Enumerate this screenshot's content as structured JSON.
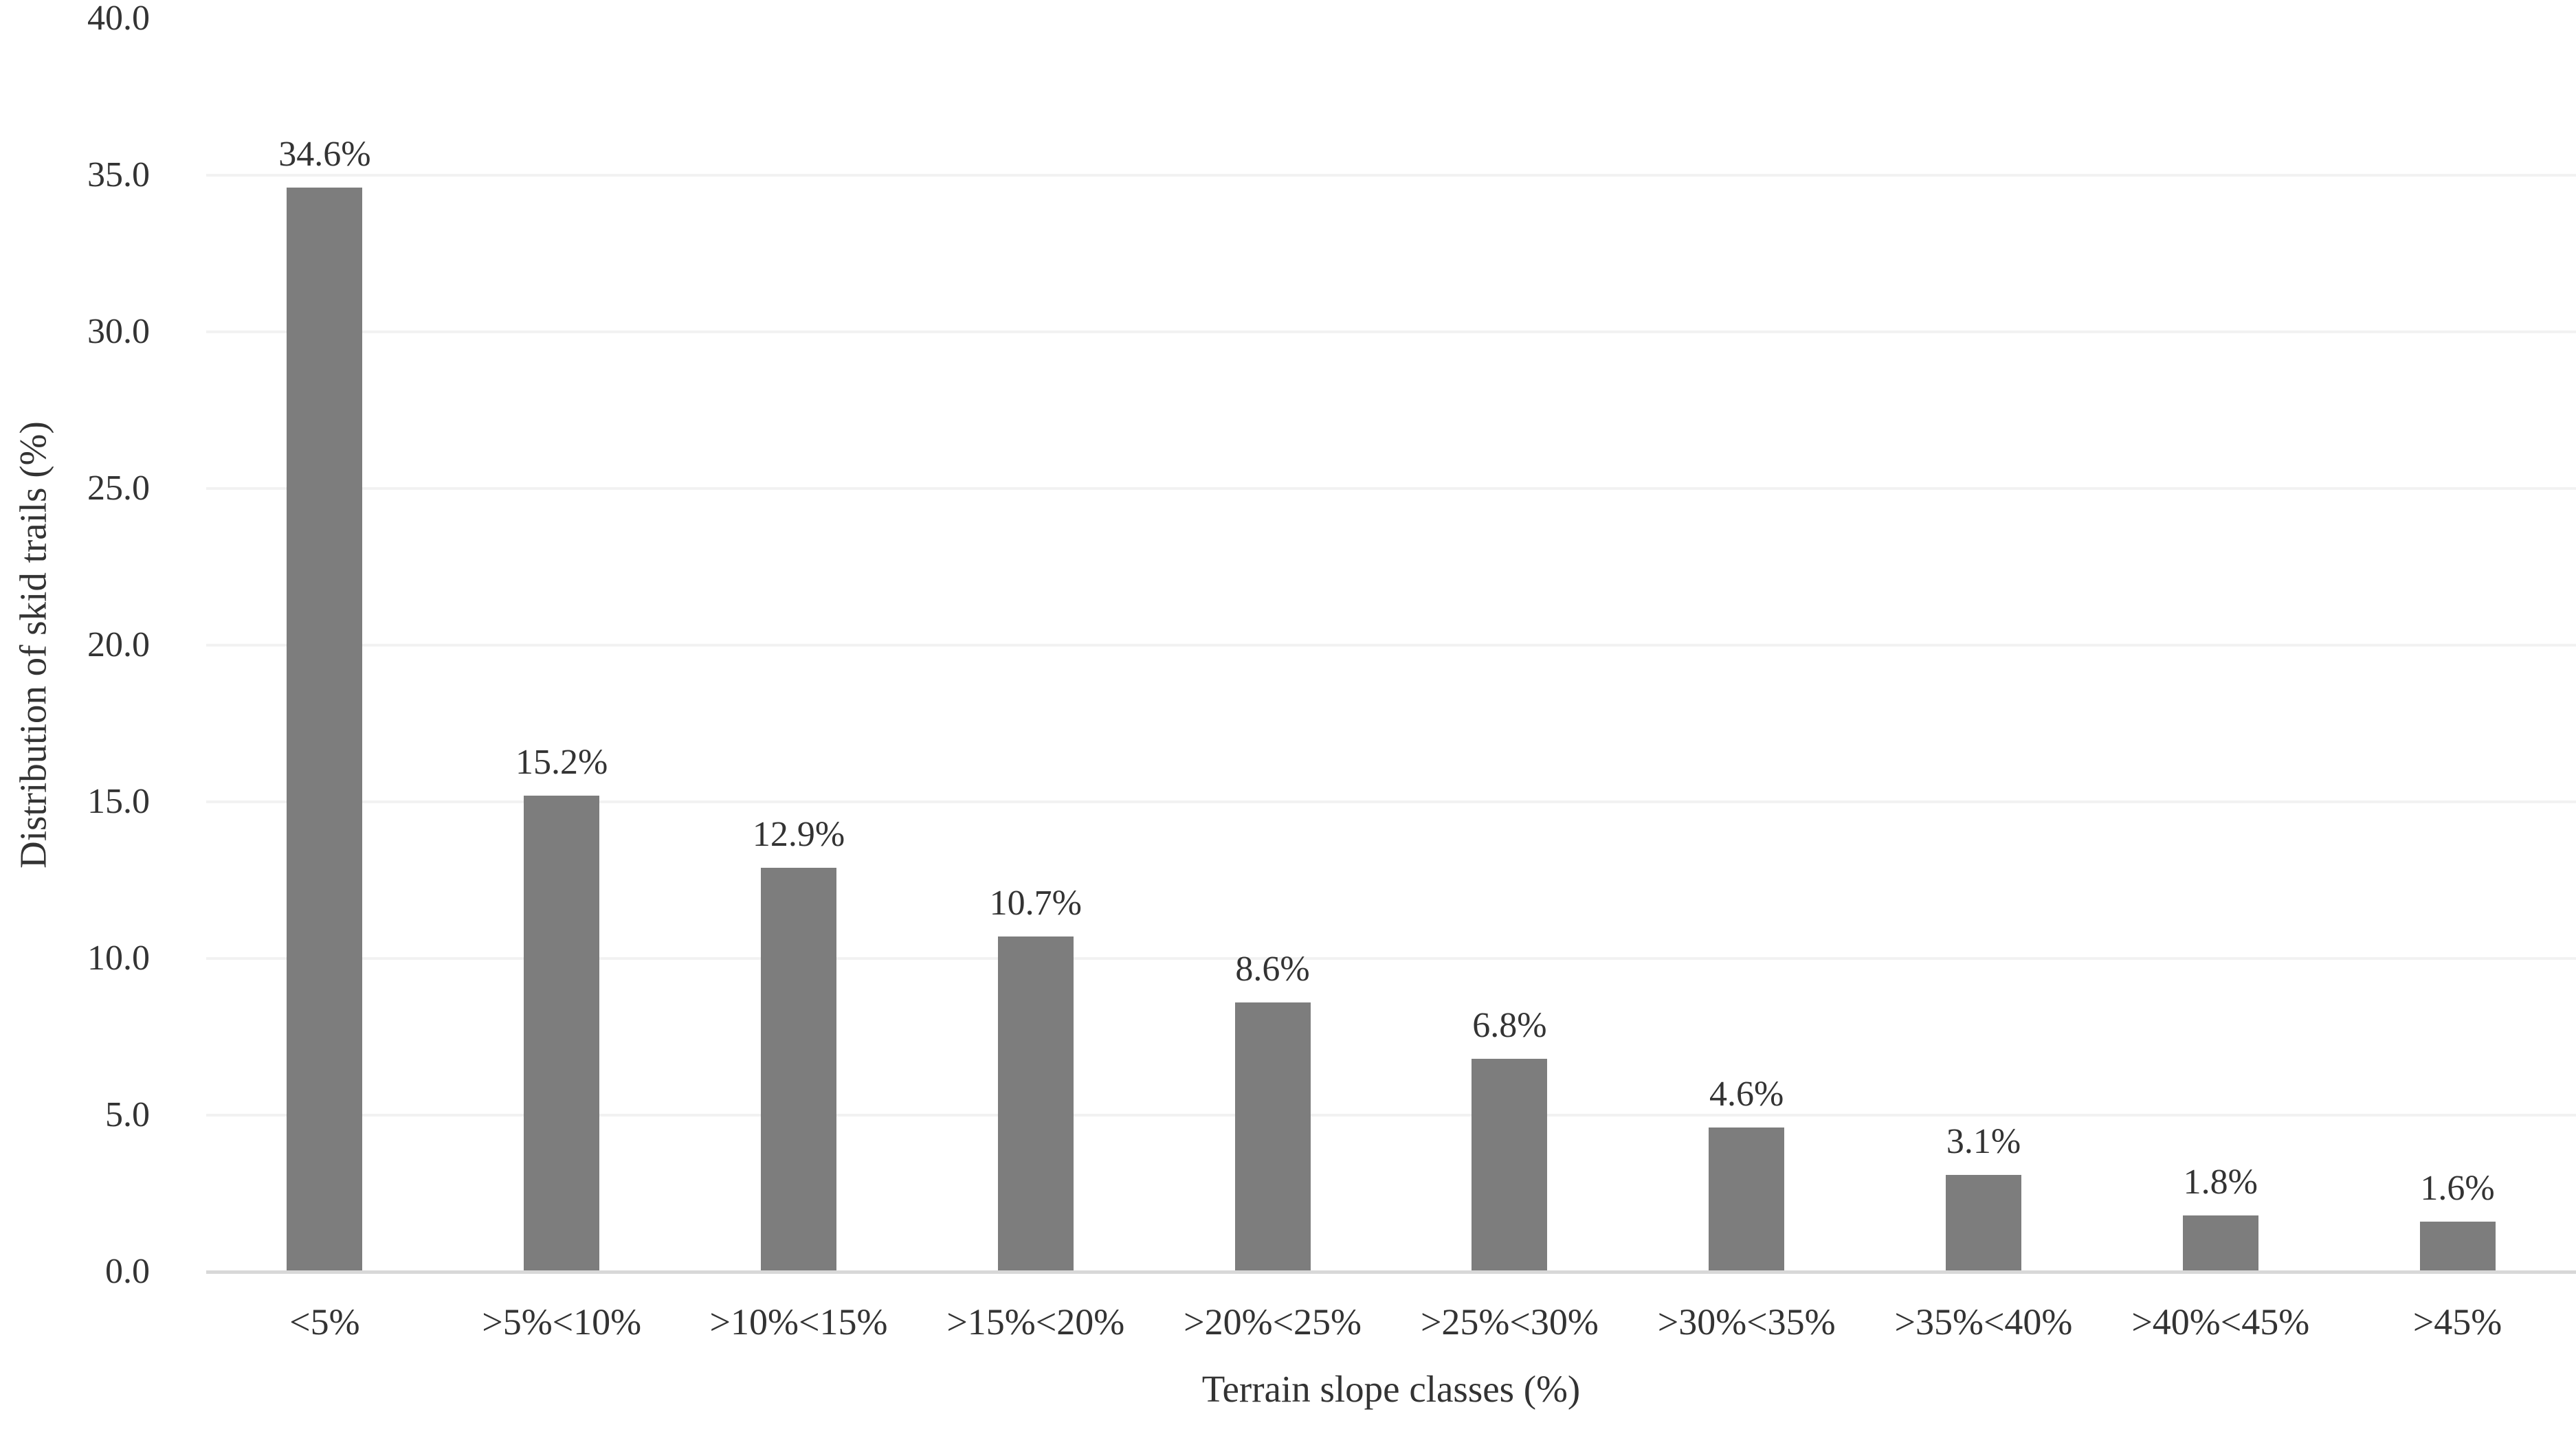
{
  "chart_data": {
    "type": "bar",
    "title": "",
    "categories": [
      "<5%",
      ">5%<10%",
      ">10%<15%",
      ">15%<20%",
      ">20%<25%",
      ">25%<30%",
      ">30%<35%",
      ">35%<40%",
      ">40%<45%",
      ">45%"
    ],
    "values": [
      34.6,
      15.2,
      12.9,
      10.7,
      8.6,
      6.8,
      4.6,
      3.1,
      1.8,
      1.6
    ],
    "data_labels": [
      "34.6%",
      "15.2%",
      "12.9%",
      "10.7%",
      "8.6%",
      "6.8%",
      "4.6%",
      "3.1%",
      "1.8%",
      "1.6%"
    ],
    "xlabel": "Terrain slope classes (%)",
    "ylabel": "Distribution of skid trails (%)",
    "ylim": [
      0,
      40
    ],
    "ytick_step": 5,
    "yticks": [
      "40.0",
      "35.0",
      "30.0",
      "25.0",
      "20.0",
      "15.0",
      "10.0",
      "5.0",
      "0.0"
    ],
    "grid": "horizontal-light",
    "legend": "none",
    "bar_color": "#7d7d7d",
    "gridline_color": "#f2f2f2",
    "axis_line_color": "#d8d8d8",
    "text_color": "#333333",
    "background_color": "#ffffff"
  }
}
